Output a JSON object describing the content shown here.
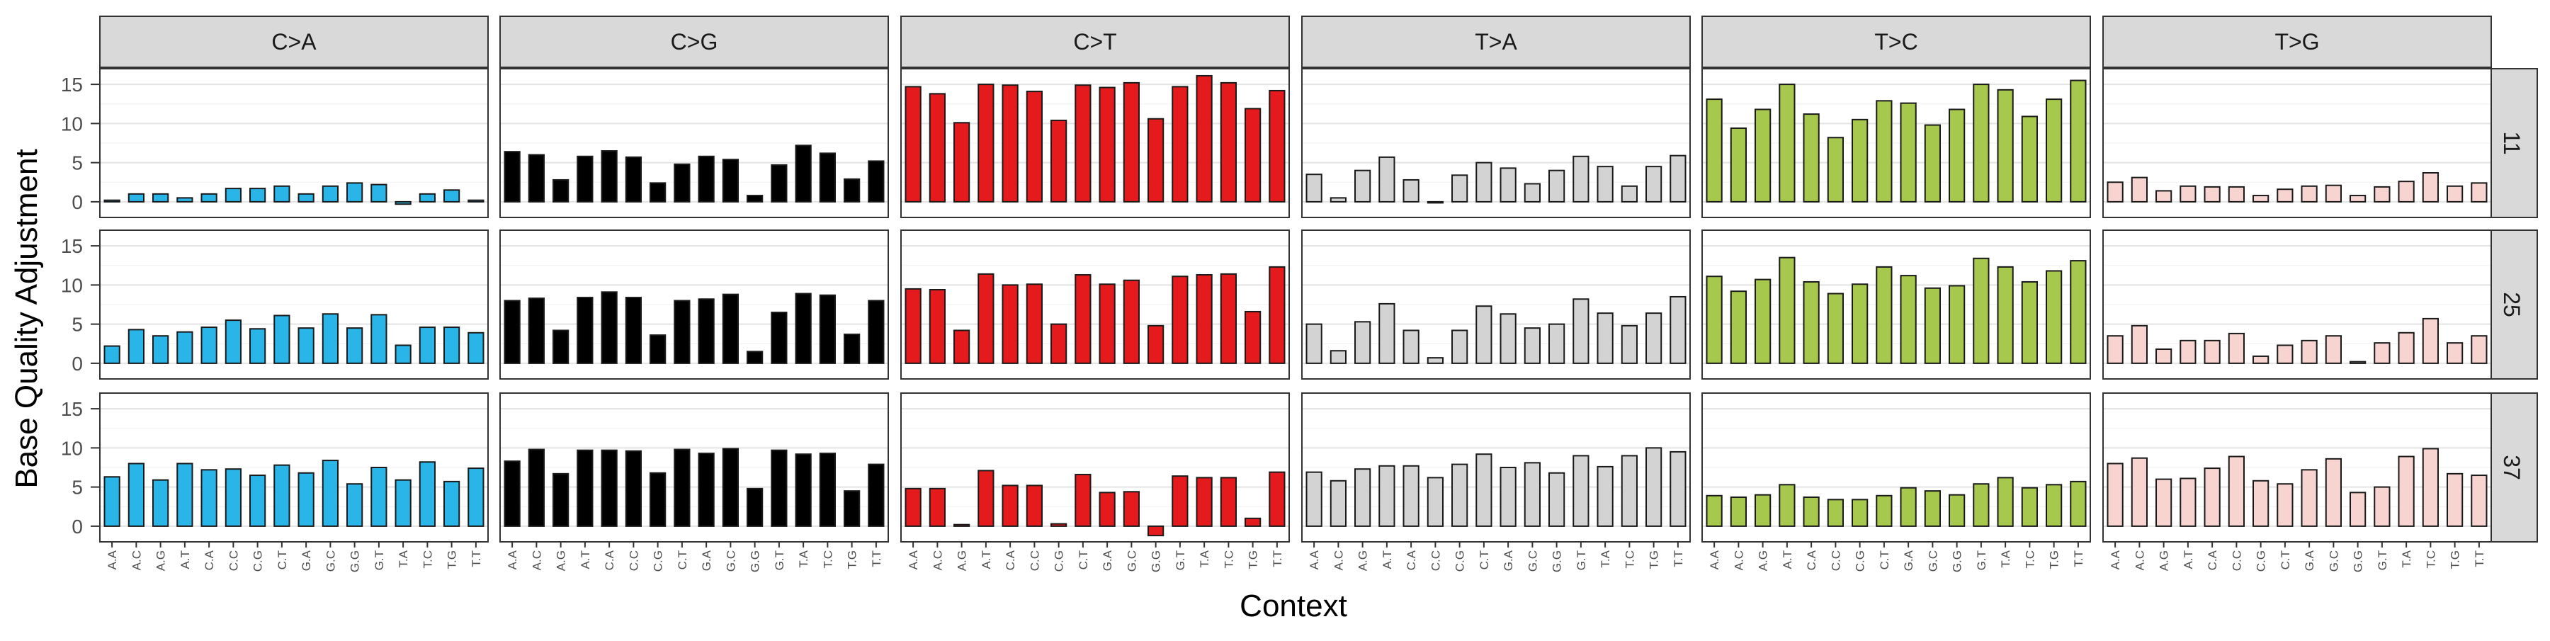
{
  "chart_data": {
    "type": "bar",
    "ylabel": "Base Quality Adjustment",
    "xlabel": "Context",
    "yticks": [
      0,
      5,
      10,
      15
    ],
    "ylim": [
      -2,
      17
    ],
    "grid": true,
    "facet_columns": [
      "C>A",
      "C>G",
      "C>T",
      "T>A",
      "T>C",
      "T>G"
    ],
    "facet_rows": [
      "11",
      "25",
      "37"
    ],
    "categories": [
      "A.A",
      "A.C",
      "A.G",
      "A.T",
      "C.A",
      "C.C",
      "C.G",
      "C.T",
      "G.A",
      "G.C",
      "G.G",
      "G.T",
      "T.A",
      "T.C",
      "T.G",
      "T.T"
    ],
    "colors": {
      "C>A": "#29b5e8",
      "C>G": "#000000",
      "C>T": "#e41a1c",
      "T>A": "#d3d3d3",
      "T>C": "#a6c84c",
      "T>G": "#f7d4d0"
    },
    "values": {
      "11": {
        "C>A": [
          0.2,
          1,
          1,
          0.5,
          1,
          1.7,
          1.7,
          2,
          1,
          2,
          2.4,
          2.2,
          -0.3,
          1,
          1.5,
          0.2
        ],
        "C>G": [
          6.4,
          6,
          2.8,
          5.8,
          6.5,
          5.7,
          2.4,
          4.8,
          5.8,
          5.4,
          0.8,
          4.7,
          7.2,
          6.2,
          2.9,
          5.2
        ],
        "C>T": [
          14.7,
          13.8,
          10.1,
          15,
          14.9,
          14.1,
          10.4,
          14.9,
          14.6,
          15.2,
          10.6,
          14.7,
          16.1,
          15.2,
          11.9,
          14.2
        ],
        "T>A": [
          3.5,
          0.5,
          4,
          5.7,
          2.8,
          0,
          3.4,
          5,
          4.3,
          2.3,
          4,
          5.8,
          4.5,
          2,
          4.5,
          5.9
        ],
        "T>C": [
          13.1,
          9.4,
          11.8,
          15,
          11.2,
          8.2,
          10.5,
          12.9,
          12.6,
          9.8,
          11.8,
          15,
          14.3,
          10.9,
          13.1,
          15.5
        ],
        "T>G": [
          2.5,
          3.1,
          1.4,
          2,
          1.9,
          1.9,
          0.8,
          1.6,
          2,
          2.1,
          0.8,
          1.9,
          2.6,
          3.7,
          2,
          2.4
        ]
      },
      "25": {
        "C>A": [
          2.2,
          4.3,
          3.5,
          4,
          4.6,
          5.5,
          4.4,
          6.1,
          4.5,
          6.3,
          4.5,
          6.2,
          2.3,
          4.6,
          4.6,
          3.9
        ],
        "C>G": [
          8,
          8.3,
          4.2,
          8.4,
          9.1,
          8.4,
          3.6,
          8,
          8.2,
          8.8,
          1.5,
          6.5,
          8.9,
          8.7,
          3.7,
          8
        ],
        "C>T": [
          9.5,
          9.4,
          4.2,
          11.4,
          10,
          10.1,
          5,
          11.3,
          10.1,
          10.6,
          4.8,
          11.1,
          11.3,
          11.4,
          6.6,
          12.3
        ],
        "T>A": [
          5,
          1.6,
          5.3,
          7.6,
          4.2,
          0.7,
          4.2,
          7.3,
          6.3,
          4.5,
          5,
          8.2,
          6.4,
          4.8,
          6.4,
          8.5
        ],
        "T>C": [
          11.1,
          9.2,
          10.7,
          13.5,
          10.4,
          8.9,
          10.1,
          12.3,
          11.2,
          9.6,
          9.9,
          13.4,
          12.3,
          10.4,
          11.8,
          13.1
        ],
        "T>G": [
          3.5,
          4.8,
          1.8,
          2.9,
          2.9,
          3.8,
          0.9,
          2.3,
          2.9,
          3.5,
          0.2,
          2.6,
          3.9,
          5.7,
          2.6,
          3.5
        ]
      },
      "37": {
        "C>A": [
          6.3,
          8,
          5.9,
          8,
          7.2,
          7.3,
          6.5,
          7.8,
          6.8,
          8.4,
          5.4,
          7.5,
          5.9,
          8.2,
          5.7,
          7.4
        ],
        "C>G": [
          8.3,
          9.8,
          6.7,
          9.7,
          9.7,
          9.6,
          6.8,
          9.8,
          9.3,
          9.9,
          4.8,
          9.7,
          9.2,
          9.3,
          4.5,
          7.9
        ],
        "C>T": [
          4.8,
          4.8,
          0.2,
          7.1,
          5.2,
          5.2,
          0.3,
          6.6,
          4.3,
          4.4,
          -1.2,
          6.4,
          6.2,
          6.2,
          1,
          6.9
        ],
        "T>A": [
          6.9,
          5.8,
          7.3,
          7.7,
          7.7,
          6.2,
          7.9,
          9.2,
          7.5,
          8.1,
          6.8,
          9,
          7.6,
          9,
          10,
          9.5
        ],
        "T>C": [
          3.9,
          3.7,
          4,
          5.3,
          3.7,
          3.4,
          3.4,
          3.9,
          4.9,
          4.5,
          4,
          5.4,
          6.2,
          4.9,
          5.3,
          5.7
        ],
        "T>G": [
          8,
          8.7,
          6,
          6.1,
          7.4,
          8.9,
          5.8,
          5.4,
          7.2,
          8.6,
          4.3,
          5,
          8.9,
          9.9,
          6.7,
          6.5
        ]
      }
    }
  }
}
